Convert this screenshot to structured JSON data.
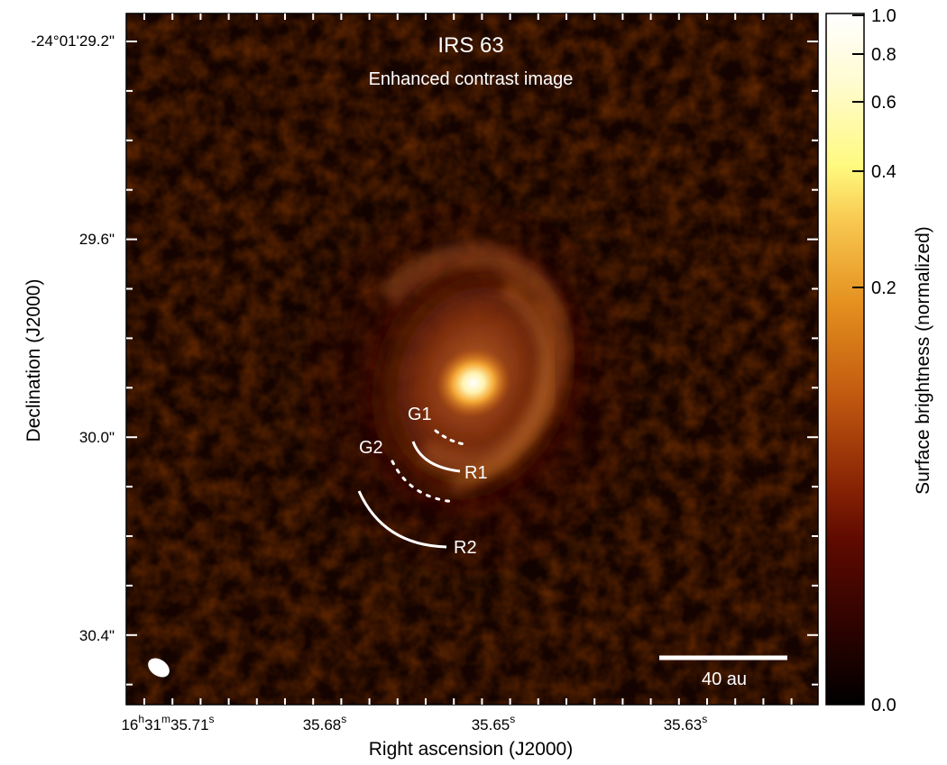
{
  "image": {
    "title": "IRS 63",
    "subtitle": "Enhanced contrast image",
    "scale_bar_label": "40 au",
    "annotations": [
      {
        "id": "G1",
        "label": "G1",
        "style": "dotted"
      },
      {
        "id": "R1",
        "label": "R1",
        "style": "solid"
      },
      {
        "id": "G2",
        "label": "G2",
        "style": "dotted"
      },
      {
        "id": "R2",
        "label": "R2",
        "style": "solid"
      }
    ]
  },
  "axes": {
    "x_label": "Right ascension (J2000)",
    "y_label": "Declination (J2000)",
    "x_ticks": [
      {
        "text": "16",
        "h": "h",
        "m": "31",
        "mm": "m",
        "s": "35.71",
        "ss": "s"
      },
      {
        "text": "35.68",
        "ss": "s"
      },
      {
        "text": "35.65",
        "ss": "s"
      },
      {
        "text": "35.63",
        "ss": "s"
      }
    ],
    "y_ticks": [
      "-24°01'29.2\"",
      "29.6\"",
      "30.0\"",
      "30.4\""
    ]
  },
  "colorbar": {
    "label": "Surface brightness (normalized)",
    "ticks": [
      "1.0",
      "0.8",
      "0.6",
      "0.4",
      "0.2",
      "0.0"
    ],
    "colors": [
      "#000000",
      "#3a0500",
      "#6a1400",
      "#a33a05",
      "#d86b10",
      "#f3a030",
      "#fff07a",
      "#ffffff"
    ]
  }
}
